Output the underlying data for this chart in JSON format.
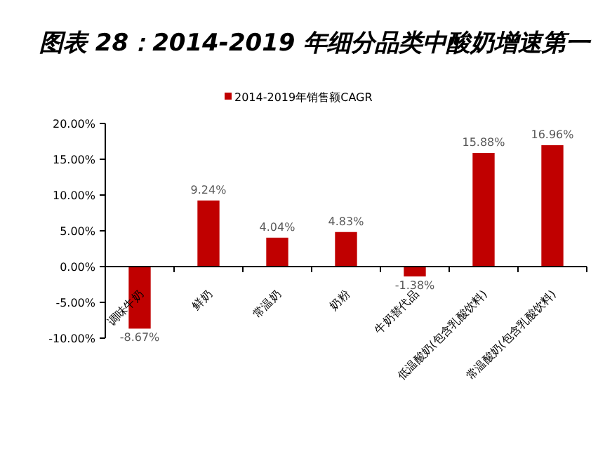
{
  "chart_data": {
    "type": "bar",
    "title": "图表 28：2014-2019 年细分品类中酸奶增速第一",
    "categories": [
      "调味牛奶",
      "鲜奶",
      "常温奶",
      "奶粉",
      "牛奶替代品",
      "低温酸奶(包含乳酸饮料)",
      "常温酸奶(包含乳酸饮料)"
    ],
    "series": [
      {
        "name": "2014-2019年销售额CAGR",
        "color": "#c00000",
        "values": [
          -8.67,
          9.24,
          4.04,
          4.83,
          -1.38,
          15.88,
          16.96
        ],
        "value_labels": [
          "-8.67%",
          "9.24%",
          "4.04%",
          "4.83%",
          "-1.38%",
          "15.88%",
          "16.96%"
        ]
      }
    ],
    "ylim": [
      -10,
      20
    ],
    "yticks": [
      {
        "value": -10,
        "label": "-10.00%"
      },
      {
        "value": -5,
        "label": "-5.00%"
      },
      {
        "value": 0,
        "label": "0.00%"
      },
      {
        "value": 5,
        "label": "5.00%"
      },
      {
        "value": 10,
        "label": "10.00%"
      },
      {
        "value": 15,
        "label": "15.00%"
      },
      {
        "value": 20,
        "label": "20.00%"
      }
    ],
    "grid": false,
    "legend": "top"
  }
}
